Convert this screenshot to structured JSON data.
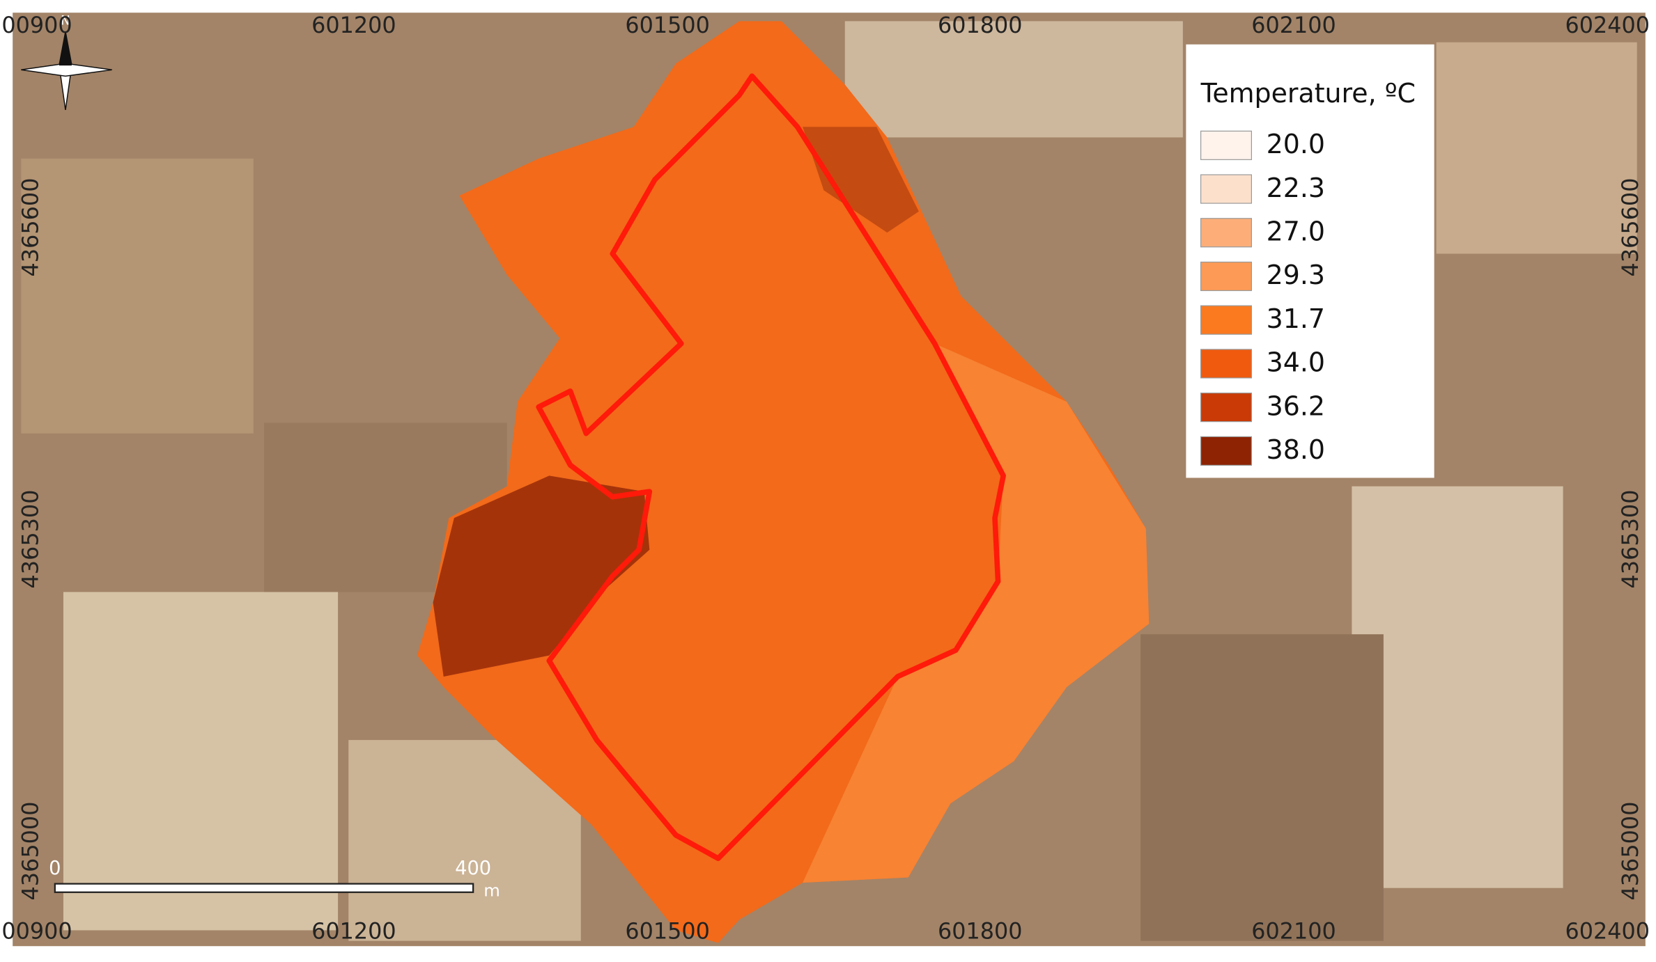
{
  "map": {
    "north_arrow": "N",
    "top_labels": [
      "00900",
      "601200",
      "601500",
      "601800",
      "602100",
      "602400"
    ],
    "bottom_labels": [
      "00900",
      "601200",
      "601500",
      "601800",
      "602100",
      "602400"
    ],
    "left_labels": [
      "4365600",
      "4365300",
      "4365000"
    ],
    "right_labels": [
      "4365600",
      "4365300",
      "4365000"
    ],
    "scale_bar": {
      "start": "0",
      "end": "400",
      "unit": "m"
    }
  },
  "legend": {
    "title": "Temperature, ºC",
    "items": [
      {
        "label": "20.0",
        "color": "#fff3ec"
      },
      {
        "label": "22.3",
        "color": "#fde0cc"
      },
      {
        "label": "27.0",
        "color": "#fdae78"
      },
      {
        "label": "29.3",
        "color": "#fd9a55"
      },
      {
        "label": "31.7",
        "color": "#fb7a20"
      },
      {
        "label": "34.0",
        "color": "#f05a0e"
      },
      {
        "label": "36.2",
        "color": "#c93a06"
      },
      {
        "label": "38.0",
        "color": "#8e2303"
      }
    ]
  }
}
